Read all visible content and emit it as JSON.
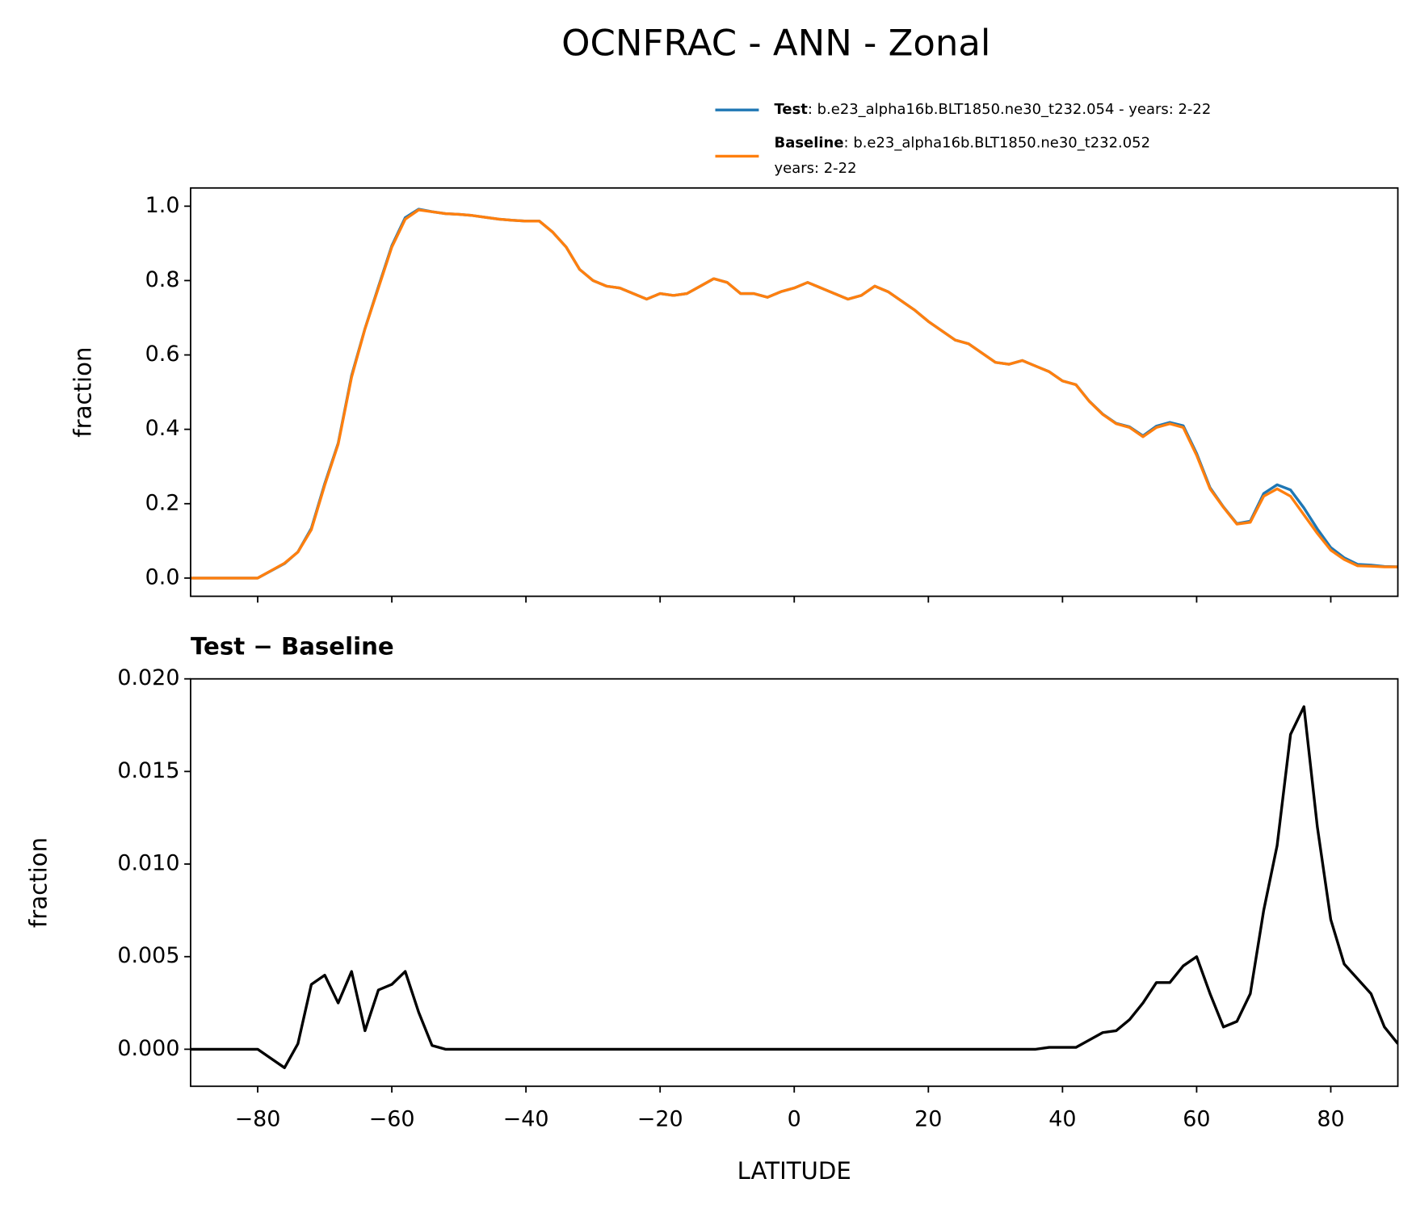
{
  "chart_data": [
    {
      "type": "line",
      "title": "OCNFRAC - ANN - Zonal",
      "ylabel": "fraction",
      "x": [
        -90,
        -88,
        -86,
        -84,
        -82,
        -80,
        -78,
        -76,
        -74,
        -72,
        -70,
        -68,
        -66,
        -64,
        -62,
        -60,
        -58,
        -56,
        -54,
        -52,
        -50,
        -48,
        -46,
        -44,
        -42,
        -40,
        -38,
        -36,
        -34,
        -32,
        -30,
        -28,
        -26,
        -24,
        -22,
        -20,
        -18,
        -16,
        -14,
        -12,
        -10,
        -8,
        -6,
        -4,
        -2,
        0,
        2,
        4,
        6,
        8,
        10,
        12,
        14,
        16,
        18,
        20,
        22,
        24,
        26,
        28,
        30,
        32,
        34,
        36,
        38,
        40,
        42,
        44,
        46,
        48,
        50,
        52,
        54,
        56,
        58,
        60,
        62,
        64,
        66,
        68,
        70,
        72,
        74,
        76,
        78,
        80,
        82,
        84,
        86,
        88,
        90
      ],
      "series": [
        {
          "name": "Test",
          "detail": [
            ": b.e23_alpha16b.BLT1850.ne30_t232.054 - years: 2-22"
          ],
          "color": "#1f77b4",
          "values": [
            0,
            0,
            0,
            0,
            0,
            0,
            0.0195,
            0.039,
            0.0703,
            0.1335,
            0.254,
            0.3625,
            0.5442,
            0.671,
            0.7832,
            0.8935,
            0.9692,
            0.992,
            0.9852,
            0.98,
            0.978,
            0.975,
            0.97,
            0.965,
            0.962,
            0.96,
            0.96,
            0.93,
            0.89,
            0.83,
            0.8,
            0.785,
            0.78,
            0.765,
            0.75,
            0.765,
            0.76,
            0.765,
            0.785,
            0.805,
            0.795,
            0.765,
            0.765,
            0.755,
            0.77,
            0.78,
            0.795,
            0.78,
            0.765,
            0.75,
            0.76,
            0.785,
            0.77,
            0.745,
            0.72,
            0.69,
            0.665,
            0.64,
            0.63,
            0.605,
            0.58,
            0.575,
            0.585,
            0.57,
            0.5551,
            0.5301,
            0.5201,
            0.4755,
            0.4409,
            0.416,
            0.4066,
            0.3825,
            0.4086,
            0.4186,
            0.4095,
            0.335,
            0.243,
            0.1912,
            0.1465,
            0.153,
            0.2275,
            0.251,
            0.237,
            0.1885,
            0.132,
            0.082,
            0.0546,
            0.0368,
            0.035,
            0.0312,
            0.0303
          ]
        },
        {
          "name": "Baseline",
          "detail": [
            ": b.e23_alpha16b.BLT1850.ne30_t232.052",
            "years: 2-22"
          ],
          "color": "#ff7f0e",
          "values": [
            0,
            0,
            0,
            0,
            0,
            0,
            0.02,
            0.04,
            0.07,
            0.13,
            0.25,
            0.36,
            0.54,
            0.67,
            0.78,
            0.89,
            0.965,
            0.99,
            0.985,
            0.98,
            0.978,
            0.975,
            0.97,
            0.965,
            0.962,
            0.96,
            0.96,
            0.93,
            0.89,
            0.83,
            0.8,
            0.785,
            0.78,
            0.765,
            0.75,
            0.765,
            0.76,
            0.765,
            0.785,
            0.805,
            0.795,
            0.765,
            0.765,
            0.755,
            0.77,
            0.78,
            0.795,
            0.78,
            0.765,
            0.75,
            0.76,
            0.785,
            0.77,
            0.745,
            0.72,
            0.69,
            0.665,
            0.64,
            0.63,
            0.605,
            0.58,
            0.575,
            0.585,
            0.57,
            0.555,
            0.53,
            0.52,
            0.475,
            0.44,
            0.415,
            0.405,
            0.38,
            0.405,
            0.415,
            0.405,
            0.33,
            0.24,
            0.19,
            0.145,
            0.15,
            0.22,
            0.24,
            0.22,
            0.17,
            0.12,
            0.075,
            0.05,
            0.033,
            0.032,
            0.03,
            0.03
          ]
        }
      ],
      "xlim": [
        -90,
        90
      ],
      "xticks": [
        {
          "value": -80,
          "label": "−80"
        },
        {
          "value": -60,
          "label": "−60"
        },
        {
          "value": -40,
          "label": "−40"
        },
        {
          "value": -20,
          "label": "−20"
        },
        0,
        20,
        40,
        60,
        80
      ],
      "ylim": [
        -0.049,
        1.049
      ],
      "yticks": [
        {
          "value": 0,
          "label": "0.0"
        },
        0.2,
        0.4,
        0.6,
        0.8,
        {
          "value": 1,
          "label": "1.0"
        }
      ]
    },
    {
      "type": "line",
      "title": "Test − Baseline",
      "ylabel": "fraction",
      "xlabel": "LATITUDE",
      "x": [
        -90,
        -88,
        -86,
        -84,
        -82,
        -80,
        -78,
        -76,
        -74,
        -72,
        -70,
        -68,
        -66,
        -64,
        -62,
        -60,
        -58,
        -56,
        -54,
        -52,
        -50,
        -48,
        -46,
        -44,
        -42,
        -40,
        -38,
        -36,
        -34,
        -32,
        -30,
        -28,
        -26,
        -24,
        -22,
        -20,
        -18,
        -16,
        -14,
        -12,
        -10,
        -8,
        -6,
        -4,
        -2,
        0,
        2,
        4,
        6,
        8,
        10,
        12,
        14,
        16,
        18,
        20,
        22,
        24,
        26,
        28,
        30,
        32,
        34,
        36,
        38,
        40,
        42,
        44,
        46,
        48,
        50,
        52,
        54,
        56,
        58,
        60,
        62,
        64,
        66,
        68,
        70,
        72,
        74,
        76,
        78,
        80,
        82,
        84,
        86,
        88,
        90
      ],
      "color": "#000000",
      "values": [
        0,
        0,
        0,
        0,
        0,
        0,
        -0.0005,
        -0.001,
        0.0003,
        0.0035,
        0.004,
        0.0025,
        0.0042,
        0.001,
        0.0032,
        0.0035,
        0.0042,
        0.002,
        0.0002,
        0,
        0,
        0,
        0,
        0,
        0,
        0,
        0,
        0,
        0,
        0,
        0,
        0,
        0,
        0,
        0,
        0,
        0,
        0,
        0,
        0,
        0,
        0,
        0,
        0,
        0,
        0,
        0,
        0,
        0,
        0,
        0,
        0,
        0,
        0,
        0,
        0,
        0,
        0,
        0,
        0,
        0,
        0,
        0,
        0,
        0.0001,
        0.0001,
        0.0001,
        0.0005,
        0.0009,
        0.001,
        0.0016,
        0.0025,
        0.0036,
        0.0036,
        0.0045,
        0.005,
        0.003,
        0.0012,
        0.0015,
        0.003,
        0.0075,
        0.011,
        0.017,
        0.0185,
        0.012,
        0.007,
        0.0046,
        0.0038,
        0.003,
        0.0012,
        0.0003
      ],
      "xlim": [
        -90,
        90
      ],
      "xticks": [
        {
          "value": -80,
          "label": "−80"
        },
        {
          "value": -60,
          "label": "−60"
        },
        {
          "value": -40,
          "label": "−40"
        },
        {
          "value": -20,
          "label": "−20"
        },
        0,
        20,
        40,
        60,
        80
      ],
      "ylim": [
        -0.002,
        0.02
      ],
      "yticks": [
        {
          "value": 0,
          "label": "0.000"
        },
        0.005,
        {
          "value": 0.01,
          "label": "0.010"
        },
        0.015,
        {
          "value": 0.02,
          "label": "0.020"
        }
      ]
    }
  ]
}
